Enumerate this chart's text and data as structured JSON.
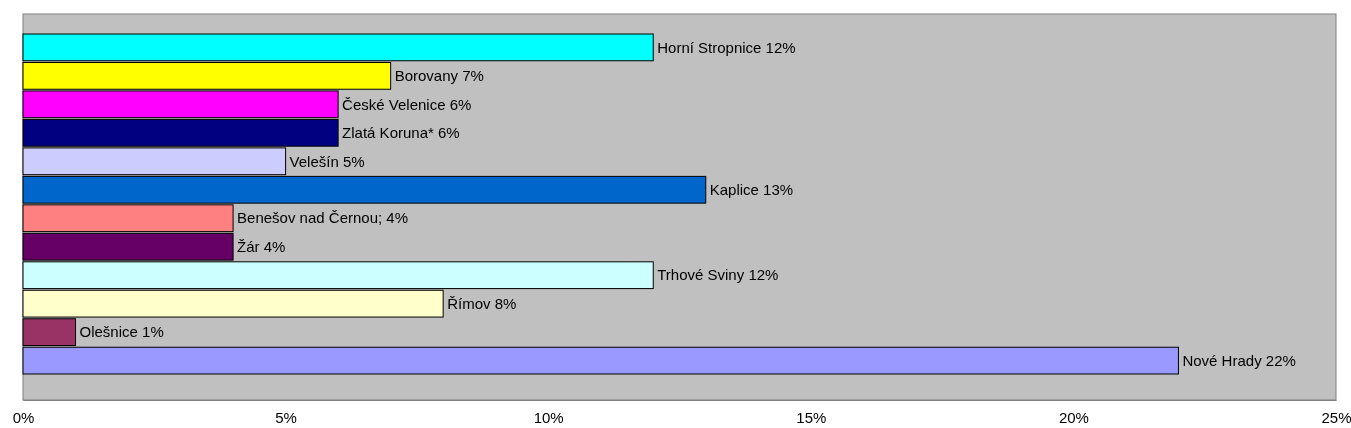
{
  "chart_data": {
    "type": "bar",
    "orientation": "horizontal",
    "categories": [
      null,
      null,
      null,
      null,
      null,
      null,
      null,
      null,
      null,
      null,
      null,
      null
    ],
    "values": [
      12,
      7,
      6,
      6,
      5,
      13,
      4,
      4,
      12,
      8,
      1,
      22
    ],
    "colors": [
      "#00ffff",
      "#ffff00",
      "#ff00ff",
      "#000080",
      "#ccccff",
      "#0066cc",
      "#ff8080",
      "#660066",
      "#ccffff",
      "#ffffcc",
      "#993366",
      "#9999ff"
    ],
    "value_labels": [
      "Horní Stropnice 12%",
      "Borovany 7%",
      "České Velenice 6%",
      "Zlatá Koruna* 6%",
      "Velešín 5%",
      "Kaplice 13%",
      "Benešov nad Černou; 4%",
      "Žár 4%",
      "Trhové Sviny 12%",
      "Římov 8%",
      "Olešnice 1%",
      "Nové Hrady 22%"
    ],
    "xlim": [
      0,
      25
    ],
    "xticks": [
      {
        "value": 0,
        "label": "0%"
      },
      {
        "value": 5,
        "label": "5%"
      },
      {
        "value": 10,
        "label": "10%"
      },
      {
        "value": 15,
        "label": "15%"
      },
      {
        "value": 20,
        "label": "20%"
      },
      {
        "value": 25,
        "label": "25%"
      }
    ],
    "grid": false
  }
}
